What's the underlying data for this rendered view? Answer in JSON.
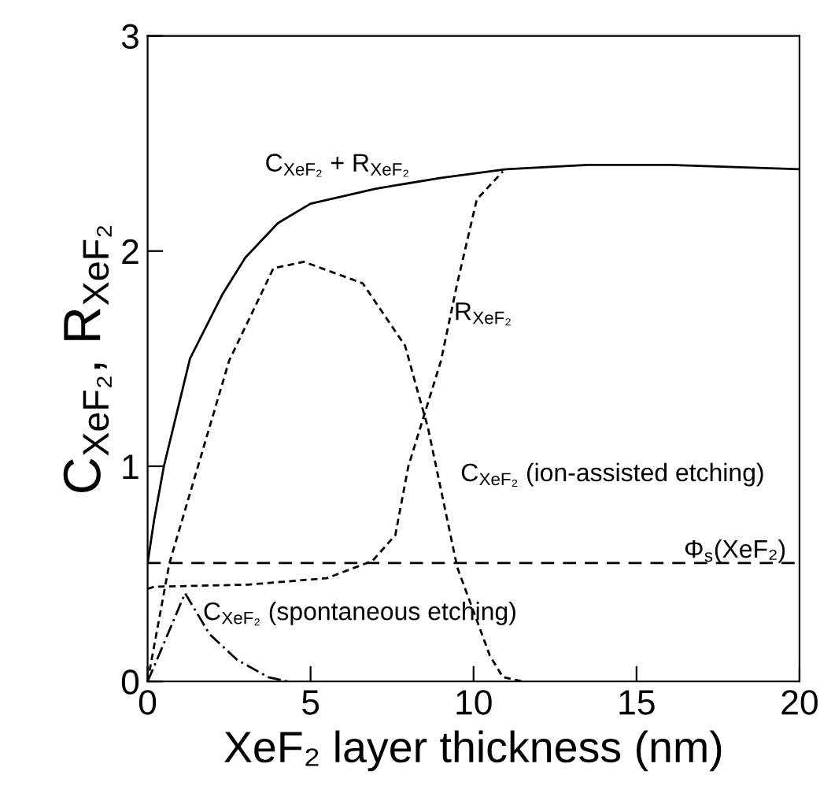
{
  "chart_data": {
    "type": "line",
    "xlabel": "XeF₂ layer thickness (nm)",
    "ylabel": "C$_{XeF₂}$, R$_{XeF₂}$",
    "xlim": [
      0,
      20
    ],
    "ylim": [
      0,
      3
    ],
    "xticks": [
      0,
      5,
      10,
      15,
      20
    ],
    "yticks": [
      0,
      1,
      2,
      3
    ],
    "grid": false,
    "legend": false,
    "marker": "none",
    "series": [
      {
        "name": "C$_{XeF₂}$ + R$_{XeF₂}$",
        "color": "#000000",
        "line_style": "solid",
        "x": [
          0,
          0.2,
          0.5,
          1.3,
          2.3,
          3,
          4,
          5,
          7,
          9,
          11,
          13.5,
          16,
          20
        ],
        "values": [
          0.55,
          0.75,
          1.0,
          1.5,
          1.8,
          1.97,
          2.13,
          2.22,
          2.29,
          2.34,
          2.38,
          2.4,
          2.4,
          2.38
        ]
      },
      {
        "name": "R$_{XeF₂}$",
        "color": "#000000",
        "line_style": "dotted",
        "x": [
          0,
          0.2,
          3.1,
          5.5,
          6.9,
          7.6,
          8.0,
          9.0,
          9.5,
          10.1,
          10.9
        ],
        "values": [
          0.43,
          0.44,
          0.45,
          0.48,
          0.56,
          0.68,
          1.0,
          1.49,
          1.85,
          2.24,
          2.37
        ]
      },
      {
        "name": "C$_{XeF₂}$ (ion-assisted etching)",
        "color": "#000000",
        "line_style": "dotted",
        "x": [
          0,
          0.67,
          2.5,
          3.86,
          4.8,
          6.6,
          7.9,
          8.3,
          8.6,
          9.5,
          10.5,
          10.9,
          11.5
        ],
        "values": [
          0.0,
          0.55,
          1.49,
          1.92,
          1.95,
          1.85,
          1.56,
          1.34,
          1.18,
          0.53,
          0.12,
          0.02,
          0.0
        ]
      },
      {
        "name": "C$_{XeF₂}$ (spontaneous etching)",
        "color": "#000000",
        "line_style": "dashed",
        "x": [
          0,
          0.2,
          1.15,
          1.9,
          2.75,
          3.7,
          4.3
        ],
        "values": [
          0.0,
          0.07,
          0.41,
          0.22,
          0.1,
          0.02,
          0.0
        ]
      }
    ],
    "ref_lines": [
      {
        "axis": "y",
        "value": 0.55,
        "label": "Φ$_{s}$(XeF₂)",
        "color": "#000000",
        "line_style": "dashed"
      }
    ]
  }
}
